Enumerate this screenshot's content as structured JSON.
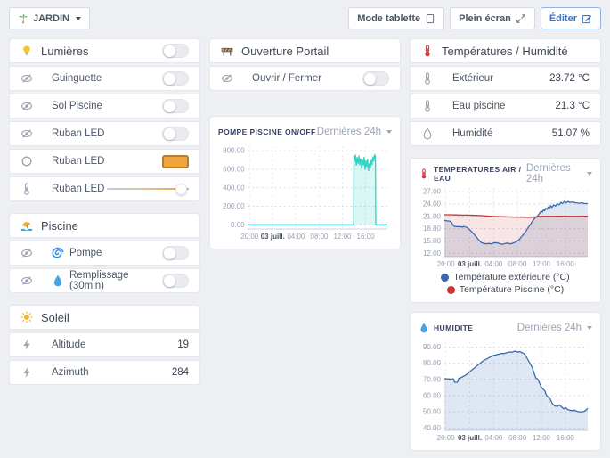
{
  "topbar": {
    "room": {
      "label": "JARDIN",
      "icon": "palm-tree"
    },
    "buttons": [
      {
        "label": "Mode tablette",
        "icon": "tablet"
      },
      {
        "label": "Plein écran",
        "icon": "expand"
      },
      {
        "label": "Éditer",
        "icon": "edit",
        "accent": "#3e72c4"
      }
    ]
  },
  "panels": {
    "lumieres": {
      "icon": "lightbulb",
      "title": "Lumières",
      "master_toggle": "off",
      "rows": [
        {
          "icon": "eye-hidden",
          "label": "Guinguette",
          "control": "toggle",
          "state": "off"
        },
        {
          "icon": "eye-hidden",
          "label": "Sol Piscine",
          "control": "toggle",
          "state": "off"
        },
        {
          "icon": "eye-hidden",
          "label": "Ruban LED",
          "control": "toggle",
          "state": "off"
        },
        {
          "icon": "circle-outline",
          "label": "Ruban LED",
          "control": "color-swatch",
          "color": "#f2a43c"
        },
        {
          "icon": "thermometer",
          "label": "Ruban LED",
          "control": "slider",
          "slider_percent": 84
        }
      ]
    },
    "piscine": {
      "icon": "beach",
      "title": "Piscine",
      "rows": [
        {
          "icon": "eye-hidden",
          "badge_icon": "cyclone",
          "label": "Pompe",
          "control": "toggle",
          "state": "off"
        },
        {
          "icon": "eye-hidden",
          "badge_icon": "droplet",
          "label": "Remplissage (30min)",
          "control": "toggle",
          "state": "off"
        }
      ]
    },
    "soleil": {
      "icon": "sun",
      "title": "Soleil",
      "rows": [
        {
          "icon": "lightning",
          "label": "Altitude",
          "value": "19"
        },
        {
          "icon": "lightning",
          "label": "Azimuth",
          "value": "284"
        }
      ]
    },
    "portail": {
      "icon": "barrier",
      "title": "Ouverture Portail",
      "rows": [
        {
          "icon": "eye-hidden",
          "label": "Ouvrir / Fermer",
          "control": "toggle",
          "state": "off"
        }
      ]
    },
    "temperatures": {
      "icon": "thermometer-red",
      "title": "Températures / Humidité",
      "rows": [
        {
          "icon": "thermometer",
          "label": "Extérieur",
          "value": "23.72 °C"
        },
        {
          "icon": "thermometer",
          "label": "Eau piscine",
          "value": "21.3 °C"
        },
        {
          "icon": "droplet-outline",
          "label": "Humidité",
          "value": "51.07 %"
        }
      ]
    }
  },
  "chart_data": [
    {
      "id": "pompe",
      "type": "area",
      "title": "POMPE PISCINE ON/OFF",
      "title_icon": null,
      "range_label": "Dernières 24h",
      "xlabel": "",
      "ylabel": "",
      "grid": true,
      "legend_position": "none",
      "ylim": [
        -45,
        850
      ],
      "yticks": {
        "values": [
          0,
          200,
          400,
          600,
          800
        ],
        "labels": [
          "0.00",
          "200.00",
          "400.00",
          "600.00",
          "800.00"
        ]
      },
      "xlim": [
        0,
        24
      ],
      "xticks": {
        "values": [
          0.25,
          4.25,
          8.25,
          12.25,
          16.25,
          20.25
        ],
        "labels": [
          "20:00",
          "03 juill.",
          "04:00",
          "08:00",
          "12:00",
          "16:00"
        ],
        "bold_index": 1
      },
      "series": [
        {
          "name": "Pompe piscine",
          "color": "#2fd3c5",
          "fill": "rgba(47,211,197,0.18)",
          "baseline": 0,
          "points": [
            [
              0,
              0
            ],
            [
              18.2,
              0
            ],
            [
              18.25,
              745
            ],
            [
              18.4,
              690
            ],
            [
              18.5,
              755
            ],
            [
              18.65,
              645
            ],
            [
              18.8,
              730
            ],
            [
              18.95,
              660
            ],
            [
              19.1,
              745
            ],
            [
              19.25,
              650
            ],
            [
              19.4,
              715
            ],
            [
              19.55,
              615
            ],
            [
              19.7,
              700
            ],
            [
              19.85,
              645
            ],
            [
              20,
              730
            ],
            [
              20.15,
              600
            ],
            [
              20.3,
              690
            ],
            [
              20.45,
              630
            ],
            [
              20.6,
              705
            ],
            [
              20.75,
              585
            ],
            [
              20.9,
              660
            ],
            [
              21.05,
              615
            ],
            [
              21.2,
              695
            ],
            [
              21.35,
              650
            ],
            [
              21.5,
              735
            ],
            [
              21.65,
              690
            ],
            [
              21.8,
              758
            ],
            [
              21.95,
              740
            ],
            [
              22,
              0
            ],
            [
              24,
              0
            ]
          ]
        }
      ]
    },
    {
      "id": "temp",
      "type": "area",
      "title": "TEMPERATURES AIR / EAU",
      "title_icon": "thermometer-red",
      "range_label": "Dernières 24h",
      "xlabel": "",
      "ylabel": "",
      "grid": true,
      "legend_position": "bottom",
      "ylim": [
        11.2,
        27.9
      ],
      "yticks": {
        "values": [
          12,
          15,
          18,
          21,
          24,
          27
        ],
        "labels": [
          "12.00",
          "15.00",
          "18.00",
          "21.00",
          "24.00",
          "27.00"
        ]
      },
      "xlim": [
        0,
        24
      ],
      "xticks": {
        "values": [
          0.25,
          4.25,
          8.25,
          12.25,
          16.25,
          20.25
        ],
        "labels": [
          "20:00",
          "03 juill.",
          "04:00",
          "08:00",
          "12:00",
          "16:00"
        ],
        "bold_index": 1
      },
      "series": [
        {
          "name": "Température extérieure (°C)",
          "color": "#3a68b0",
          "fill": "rgba(58,104,176,0.16)",
          "points": [
            [
              0,
              20.0
            ],
            [
              0.5,
              19.9
            ],
            [
              1,
              19.8
            ],
            [
              1.3,
              19.3
            ],
            [
              1.6,
              18.6
            ],
            [
              2,
              18.5
            ],
            [
              2.5,
              18.5
            ],
            [
              3,
              18.4
            ],
            [
              3.3,
              18.5
            ],
            [
              3.8,
              18.3
            ],
            [
              4.2,
              17.8
            ],
            [
              4.6,
              17.2
            ],
            [
              5,
              16.6
            ],
            [
              5.4,
              15.9
            ],
            [
              5.8,
              15.2
            ],
            [
              6.2,
              14.6
            ],
            [
              6.6,
              14.4
            ],
            [
              7,
              14.3
            ],
            [
              7.4,
              14.4
            ],
            [
              7.8,
              14.3
            ],
            [
              8.2,
              14.5
            ],
            [
              8.6,
              14.6
            ],
            [
              9,
              14.5
            ],
            [
              9.4,
              14.3
            ],
            [
              9.8,
              14.2
            ],
            [
              10.2,
              14.4
            ],
            [
              10.6,
              14.5
            ],
            [
              11,
              14.3
            ],
            [
              11.4,
              14.4
            ],
            [
              12,
              14.8
            ],
            [
              12.5,
              15.3
            ],
            [
              13,
              16.2
            ],
            [
              13.5,
              17.1
            ],
            [
              14,
              18.2
            ],
            [
              14.5,
              19.3
            ],
            [
              15,
              20.3
            ],
            [
              15.5,
              21.0
            ],
            [
              15.8,
              21.5
            ],
            [
              16,
              21.9
            ],
            [
              16.2,
              22.3
            ],
            [
              16.4,
              22.0
            ],
            [
              16.6,
              22.6
            ],
            [
              16.8,
              22.4
            ],
            [
              17,
              23.0
            ],
            [
              17.2,
              22.7
            ],
            [
              17.4,
              23.3
            ],
            [
              17.6,
              23.0
            ],
            [
              17.8,
              23.6
            ],
            [
              18,
              23.2
            ],
            [
              18.3,
              23.8
            ],
            [
              18.6,
              23.5
            ],
            [
              18.9,
              24.1
            ],
            [
              19.2,
              23.8
            ],
            [
              19.5,
              24.4
            ],
            [
              19.8,
              24.1
            ],
            [
              20.1,
              24.7
            ],
            [
              20.4,
              24.3
            ],
            [
              20.7,
              24.6
            ],
            [
              21,
              24.4
            ],
            [
              21.5,
              24.5
            ],
            [
              22,
              24.3
            ],
            [
              22.5,
              24.2
            ],
            [
              23,
              24.3
            ],
            [
              23.5,
              24.1
            ],
            [
              24,
              24.1
            ]
          ]
        },
        {
          "name": "Température Piscine (°C)",
          "color": "#cc3333",
          "fill": "rgba(204,51,51,0.13)",
          "points": [
            [
              0,
              21.4
            ],
            [
              1,
              21.4
            ],
            [
              2,
              21.35
            ],
            [
              3,
              21.3
            ],
            [
              4,
              21.3
            ],
            [
              5,
              21.25
            ],
            [
              6,
              21.2
            ],
            [
              7,
              21.1
            ],
            [
              8,
              21.0
            ],
            [
              9,
              20.95
            ],
            [
              10,
              20.9
            ],
            [
              11,
              20.85
            ],
            [
              12,
              20.8
            ],
            [
              13,
              20.8
            ],
            [
              14,
              20.75
            ],
            [
              15,
              20.8
            ],
            [
              15.5,
              20.9
            ],
            [
              16,
              21.0
            ],
            [
              17,
              21.0
            ],
            [
              18,
              21.0
            ],
            [
              19,
              21.05
            ],
            [
              20,
              21.05
            ],
            [
              21,
              21.0
            ],
            [
              22,
              21.0
            ],
            [
              23,
              21.05
            ],
            [
              24,
              21.05
            ]
          ]
        }
      ]
    },
    {
      "id": "humidite",
      "type": "area",
      "title": "HUMIDITE",
      "title_icon": "droplet",
      "range_label": "Dernières 24h",
      "xlabel": "",
      "ylabel": "",
      "grid": true,
      "legend_position": "none",
      "ylim": [
        38.5,
        93
      ],
      "yticks": {
        "values": [
          40,
          50,
          60,
          70,
          80,
          90
        ],
        "labels": [
          "40.00",
          "50.00",
          "60.00",
          "70.00",
          "80.00",
          "90.00"
        ]
      },
      "xlim": [
        0,
        24
      ],
      "xticks": {
        "values": [
          0.25,
          4.25,
          8.25,
          12.25,
          16.25,
          20.25
        ],
        "labels": [
          "20:00",
          "03 juill.",
          "04:00",
          "08:00",
          "12:00",
          "16:00"
        ],
        "bold_index": 1
      },
      "series": [
        {
          "name": "Humidité",
          "color": "#3a68b0",
          "fill": "rgba(58,104,176,0.16)",
          "points": [
            [
              0,
              70.5
            ],
            [
              0.5,
              70.3
            ],
            [
              1,
              70.2
            ],
            [
              1.5,
              70.4
            ],
            [
              1.7,
              68.2
            ],
            [
              2.2,
              68.3
            ],
            [
              2.4,
              70.6
            ],
            [
              3,
              71.5
            ],
            [
              3.5,
              72.5
            ],
            [
              4,
              73.8
            ],
            [
              4.5,
              75.5
            ],
            [
              5,
              77
            ],
            [
              5.5,
              78.5
            ],
            [
              6,
              80
            ],
            [
              6.5,
              81.5
            ],
            [
              7,
              82.5
            ],
            [
              7.5,
              83.5
            ],
            [
              8,
              84.5
            ],
            [
              8.5,
              85
            ],
            [
              9,
              85.5
            ],
            [
              9.5,
              86
            ],
            [
              10,
              86
            ],
            [
              10.5,
              86.5
            ],
            [
              11,
              87
            ],
            [
              11.3,
              86.7
            ],
            [
              11.6,
              87.3
            ],
            [
              12,
              87.4
            ],
            [
              12.3,
              86.8
            ],
            [
              12.6,
              87.2
            ],
            [
              13,
              86.5
            ],
            [
              13.4,
              85.8
            ],
            [
              13.7,
              84
            ],
            [
              14,
              82
            ],
            [
              14.3,
              80
            ],
            [
              14.7,
              77.5
            ],
            [
              15,
              74
            ],
            [
              15.3,
              71
            ],
            [
              15.6,
              70.2
            ],
            [
              15.9,
              68
            ],
            [
              16.2,
              65.5
            ],
            [
              16.5,
              64
            ],
            [
              16.8,
              63
            ],
            [
              17.1,
              60
            ],
            [
              17.4,
              59
            ],
            [
              17.7,
              58
            ],
            [
              18,
              55.5
            ],
            [
              18.3,
              54
            ],
            [
              18.6,
              53.5
            ],
            [
              19,
              53.5
            ],
            [
              19.3,
              54.3
            ],
            [
              19.6,
              53
            ],
            [
              20,
              51.8
            ],
            [
              20.3,
              52.6
            ],
            [
              20.6,
              51.5
            ],
            [
              21,
              51
            ],
            [
              21.4,
              50.7
            ],
            [
              21.8,
              51
            ],
            [
              22.2,
              50.3
            ],
            [
              22.6,
              50
            ],
            [
              23,
              50
            ],
            [
              23.4,
              50.3
            ],
            [
              23.7,
              51
            ],
            [
              24,
              52.2
            ]
          ]
        }
      ]
    }
  ]
}
